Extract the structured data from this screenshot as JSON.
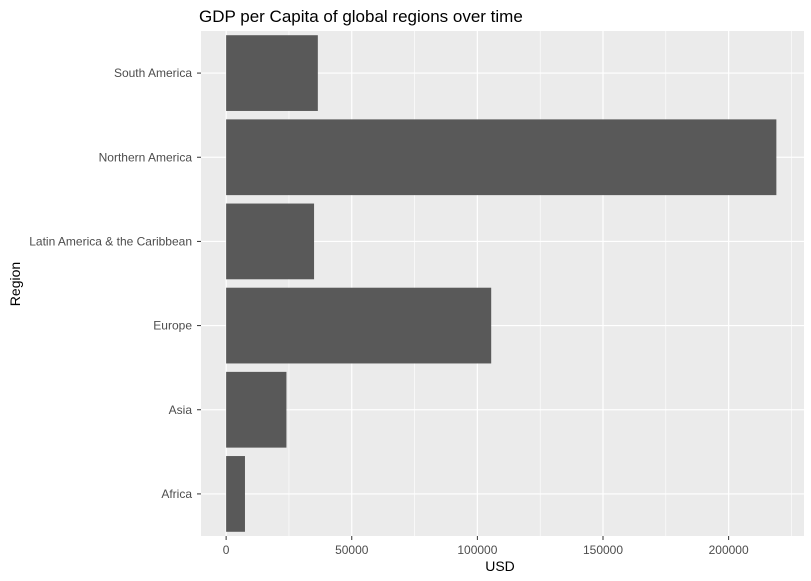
{
  "chart_data": {
    "type": "bar",
    "orientation": "horizontal",
    "title": "GDP per Capita of global regions over time",
    "xlabel": "USD",
    "ylabel": "Region",
    "categories": [
      "Africa",
      "Asia",
      "Europe",
      "Latin America & the Caribbean",
      "Northern America",
      "South America"
    ],
    "values": [
      7500,
      24000,
      105500,
      35000,
      219000,
      36500
    ],
    "xlim": [
      -10000,
      230000
    ],
    "xticks": [
      0,
      50000,
      100000,
      150000,
      200000
    ],
    "xtick_labels": [
      "0",
      "50000",
      "100000",
      "150000",
      "200000"
    ],
    "grid": true,
    "legend": "none",
    "colors": {
      "bar": "#595959",
      "panel_background": "#EBEBEB",
      "grid": "#FFFFFF",
      "text": "#000000",
      "tick_text": "#4D4D4D",
      "tick_mark": "#333333"
    }
  }
}
